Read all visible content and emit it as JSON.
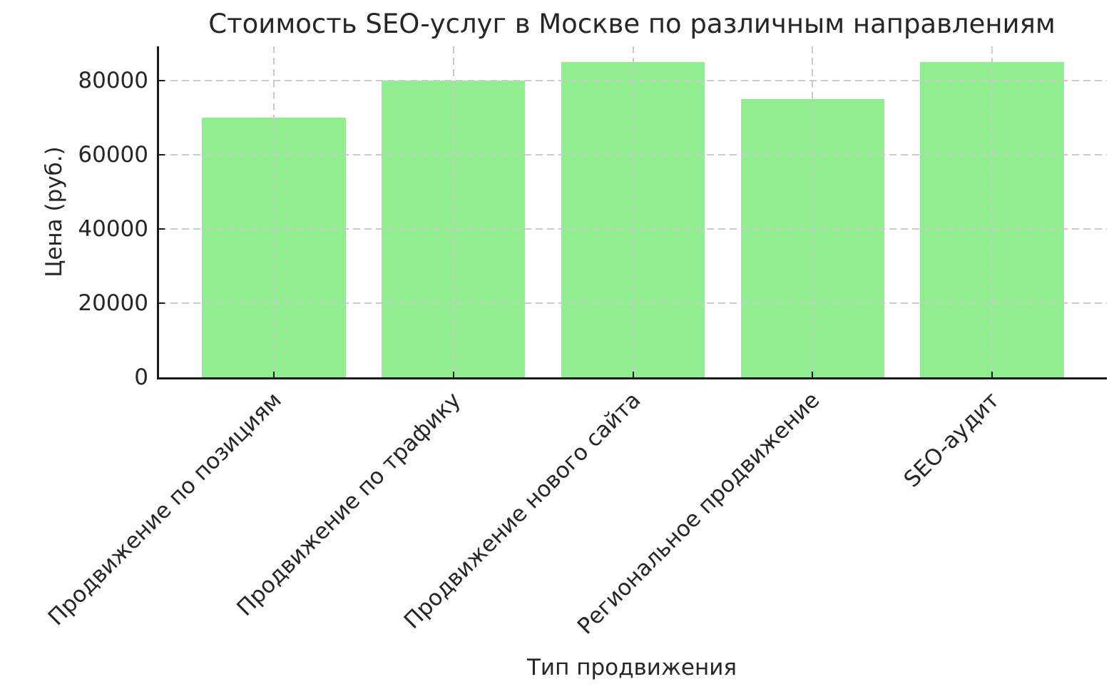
{
  "chart_data": {
    "type": "bar",
    "title": "Стоимость SEO-услуг в Москве по различным направлениям",
    "xlabel": "Тип продвижения",
    "ylabel": "Цена (руб.)",
    "categories": [
      "Продвижение по позициям",
      "Продвижение по трафику",
      "Продвижение нового сайта",
      "Региональное продвижение",
      "SEO-аудит"
    ],
    "values": [
      70000,
      80000,
      85000,
      75000,
      85000
    ],
    "yticks": [
      0,
      20000,
      40000,
      60000,
      80000
    ],
    "ytick_labels": [
      "0",
      "20000",
      "40000",
      "60000",
      "80000"
    ],
    "ylim": [
      0,
      89250
    ],
    "bar_color": "#90EE90",
    "grid": true,
    "grid_style": "dashed",
    "grid_color": "#c9c9c9",
    "grid_above_bars": true,
    "axis_color": "#1a1a1a",
    "text_color": "#262626",
    "background": "#ffffff",
    "legend": null,
    "bar_width_fraction": 0.8,
    "xtick_rotation_deg": 45
  }
}
